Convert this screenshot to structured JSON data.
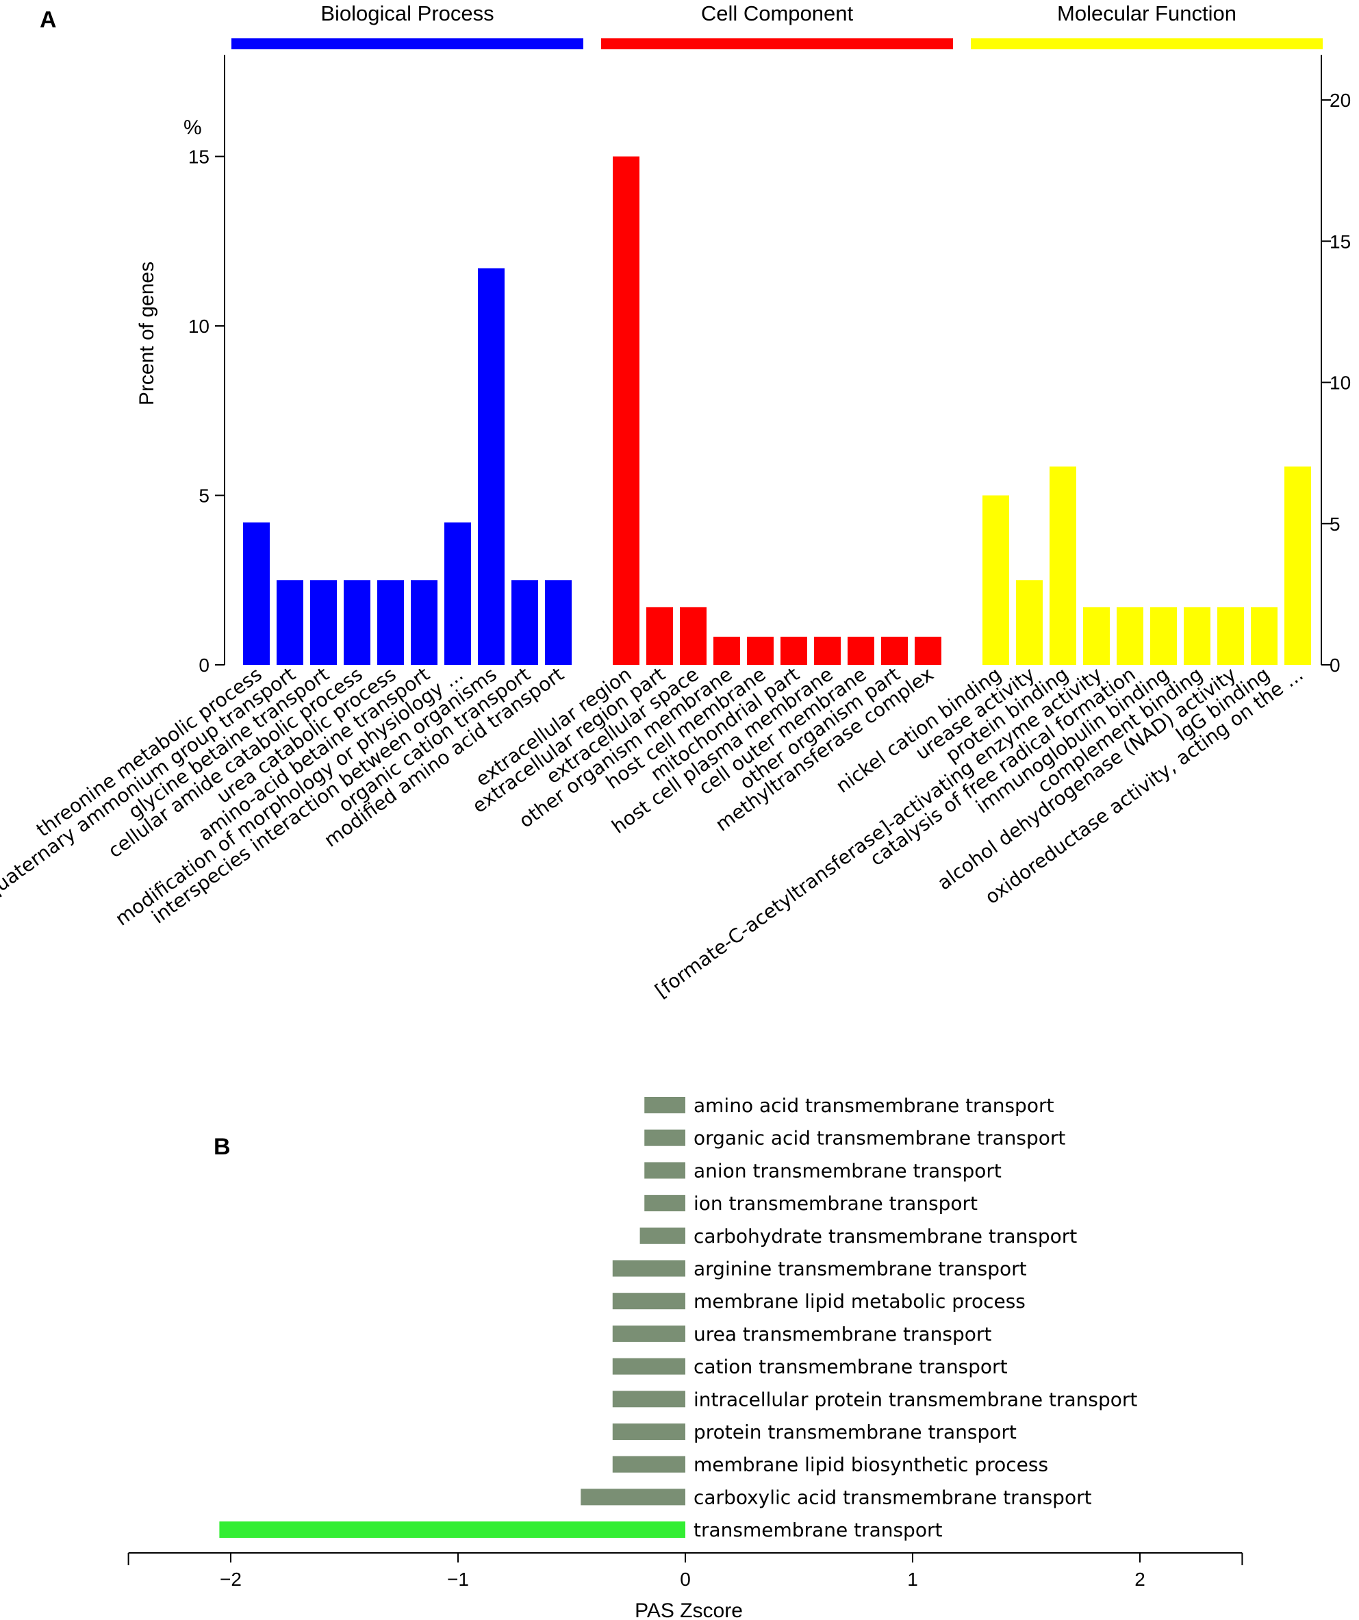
{
  "panel_a": {
    "label": "A",
    "y_unit": "%",
    "ylabel": "Prcent of genes",
    "chart_data": {
      "type": "bar",
      "ylabel": "Prcent of genes",
      "ylim": [
        0,
        18
      ],
      "yticks": [
        0,
        5,
        10,
        15
      ],
      "right_ylim": [
        0,
        21.6
      ],
      "right_yticks": [
        0,
        5,
        10,
        15,
        20
      ],
      "grid": false,
      "groups": [
        {
          "name": "Biological Process",
          "color": "#0000ff",
          "categories": [
            "threonine metabolic process",
            "quaternary ammonium group transport",
            "glycine betaine transport",
            "cellular amide catabolic process",
            "urea catabolic process",
            "amino-acid betaine transport",
            "modification of morphology or physiology ...",
            "interspecies interaction between organisms",
            "organic cation transport",
            "modified amino acid transport"
          ],
          "values": [
            4.2,
            2.5,
            2.5,
            2.5,
            2.5,
            2.5,
            4.2,
            11.7,
            2.5,
            2.5
          ]
        },
        {
          "name": "Cell Component",
          "color": "#ff0000",
          "categories": [
            "extracellular region",
            "extracellular region part",
            "extracellular space",
            "other organism membrane",
            "host cell membrane",
            "mitochondrial part",
            "host cell plasma membrane",
            "cell outer membrane",
            "other organism part",
            "methyltransferase complex"
          ],
          "values": [
            15.0,
            1.7,
            1.7,
            0.83,
            0.83,
            0.83,
            0.83,
            0.83,
            0.83,
            0.83
          ]
        },
        {
          "name": "Molecular Function",
          "color": "#ffff00",
          "categories": [
            "nickel cation binding",
            "urease activity",
            "protein binding",
            "[formate-C-acetyltransferase]-activating enzyme activity",
            "catalysis of free radical formation",
            "immunoglobulin binding",
            "complement binding",
            "alcohol dehydrogenase (NAD) activity",
            "IgG binding",
            "oxidoreductase activity, acting on the ..."
          ],
          "values": [
            5.0,
            2.5,
            5.85,
            1.7,
            1.7,
            1.7,
            1.7,
            1.7,
            1.7,
            5.85
          ]
        }
      ]
    }
  },
  "panel_b": {
    "label": "B",
    "chart_data": {
      "type": "bar",
      "orientation": "horizontal",
      "xlabel": "PAS Zscore",
      "xlim": [
        -2.45,
        2.45
      ],
      "xticks": [
        -2,
        -1,
        0,
        1,
        2
      ],
      "xtick_labels": [
        "−2",
        "−1",
        "0",
        "1",
        "2"
      ],
      "categories": [
        "amino acid transmembrane transport",
        "organic acid transmembrane transport",
        "anion transmembrane transport",
        "ion transmembrane transport",
        "carbohydrate transmembrane transport",
        "arginine transmembrane transport",
        "membrane lipid metabolic process",
        "urea transmembrane transport",
        "cation transmembrane transport",
        "intracellular protein transmembrane transport",
        "protein transmembrane transport",
        "membrane lipid biosynthetic process",
        "carboxylic acid transmembrane transport",
        "transmembrane transport"
      ],
      "values": [
        -0.18,
        -0.18,
        -0.18,
        -0.18,
        -0.2,
        -0.32,
        -0.32,
        -0.32,
        -0.32,
        -0.32,
        -0.32,
        -0.32,
        -0.46,
        -2.05
      ],
      "colors": [
        "#7a8f74",
        "#7a8f74",
        "#7a8f74",
        "#7a8f74",
        "#7a8f74",
        "#7a8f74",
        "#7a8f74",
        "#7a8f74",
        "#7a8f74",
        "#7a8f74",
        "#7a8f74",
        "#7a8f74",
        "#7a8f74",
        "#33ee33"
      ]
    }
  }
}
